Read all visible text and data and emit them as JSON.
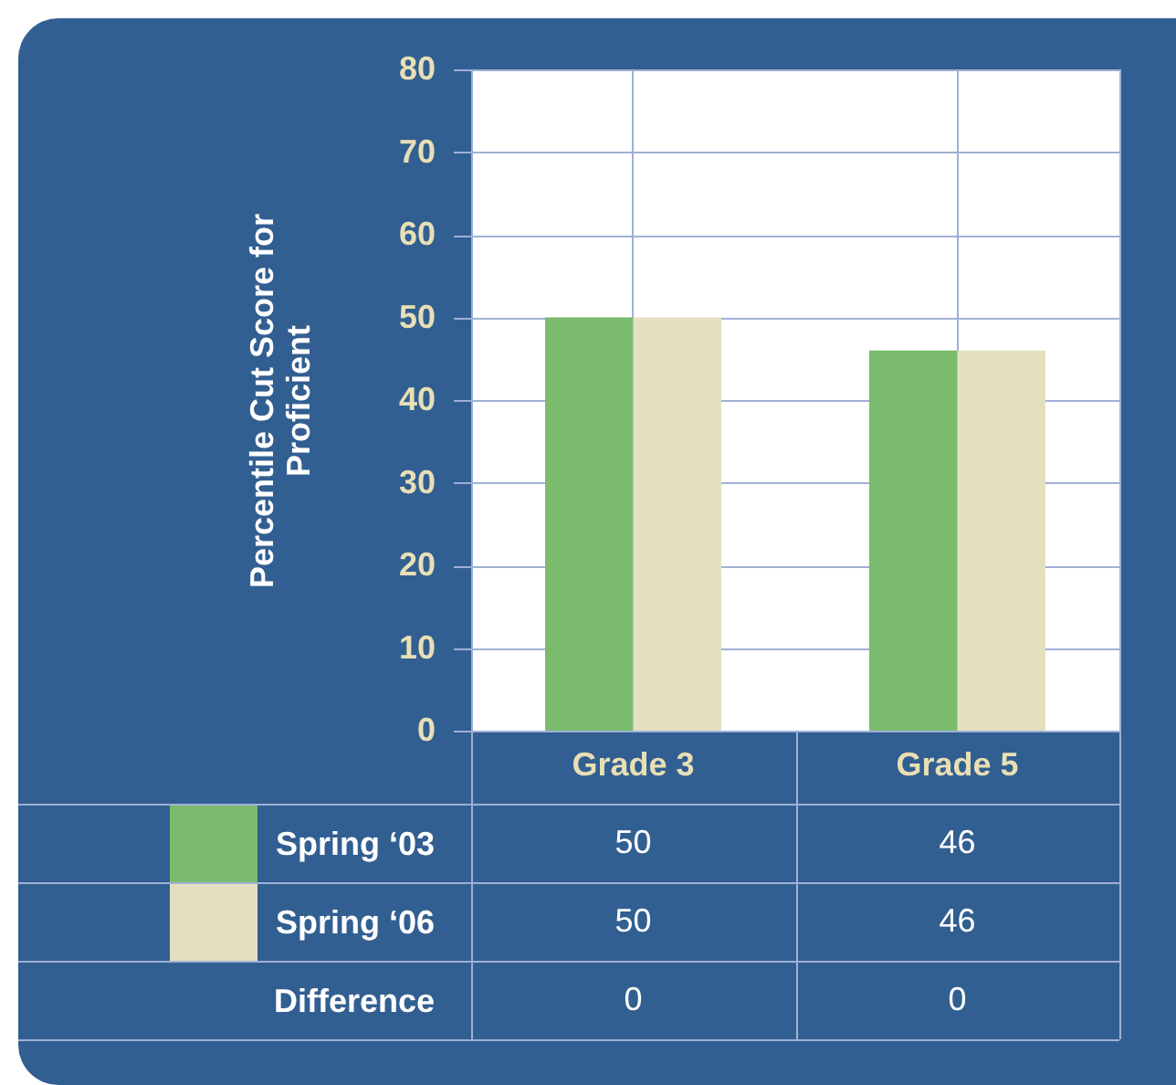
{
  "chart_data": {
    "type": "bar",
    "ylabel": "Percentile Cut Score for Proficient",
    "categories": [
      "Grade 3",
      "Grade 5"
    ],
    "series": [
      {
        "name": "Spring ‘03",
        "color": "#7abb6d",
        "values": [
          50,
          46
        ]
      },
      {
        "name": "Spring ‘06",
        "color": "#e4e0bf",
        "values": [
          50,
          46
        ]
      }
    ],
    "ylim": [
      0,
      80
    ],
    "yticks": [
      0,
      10,
      20,
      30,
      40,
      50,
      60,
      70,
      80
    ],
    "grid": true,
    "legend": "bottom",
    "data_labels": true,
    "annotations": [
      "Difference",
      "0",
      "0"
    ]
  }
}
